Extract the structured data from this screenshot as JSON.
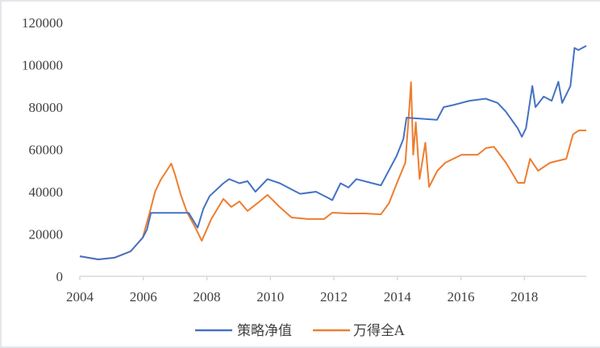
{
  "chart_data": {
    "type": "line",
    "title": "",
    "xlabel": "",
    "ylabel": "",
    "xlim": [
      2004,
      2019.95
    ],
    "ylim": [
      0,
      120000
    ],
    "x_ticks": [
      2004,
      2006,
      2008,
      2010,
      2012,
      2014,
      2016,
      2018
    ],
    "x_tick_labels": [
      "2004",
      "2006",
      "2008",
      "2010",
      "2012",
      "2014",
      "2016",
      "2018"
    ],
    "y_ticks": [
      0,
      20000,
      40000,
      60000,
      80000,
      100000,
      120000
    ],
    "y_tick_labels": [
      "0",
      "20000",
      "40000",
      "60000",
      "80000",
      "100000",
      "120000"
    ],
    "grid": false,
    "legend_position": "bottom",
    "series": [
      {
        "name": "策略净值",
        "color": "#4472c4",
        "points": [
          [
            2004.0,
            9500
          ],
          [
            2004.58,
            8000
          ],
          [
            2005.09,
            8800
          ],
          [
            2005.6,
            11800
          ],
          [
            2005.98,
            18300
          ],
          [
            2006.11,
            22000
          ],
          [
            2006.24,
            30000
          ],
          [
            2007.43,
            30000
          ],
          [
            2007.71,
            23000
          ],
          [
            2007.89,
            32000
          ],
          [
            2008.09,
            38000
          ],
          [
            2008.52,
            44000
          ],
          [
            2008.7,
            46000
          ],
          [
            2009.03,
            44000
          ],
          [
            2009.28,
            45000
          ],
          [
            2009.53,
            40000
          ],
          [
            2009.91,
            46000
          ],
          [
            2010.3,
            44000
          ],
          [
            2010.68,
            41000
          ],
          [
            2010.94,
            39000
          ],
          [
            2011.44,
            40000
          ],
          [
            2011.83,
            37000
          ],
          [
            2011.95,
            36000
          ],
          [
            2012.21,
            44000
          ],
          [
            2012.46,
            42000
          ],
          [
            2012.71,
            46000
          ],
          [
            2013.22,
            44000
          ],
          [
            2013.48,
            43000
          ],
          [
            2013.73,
            50000
          ],
          [
            2013.98,
            57000
          ],
          [
            2014.19,
            65000
          ],
          [
            2014.29,
            75000
          ],
          [
            2015.25,
            74000
          ],
          [
            2015.46,
            80000
          ],
          [
            2015.76,
            81000
          ],
          [
            2016.27,
            83000
          ],
          [
            2016.78,
            84000
          ],
          [
            2017.16,
            82000
          ],
          [
            2017.41,
            78000
          ],
          [
            2017.79,
            70000
          ],
          [
            2017.92,
            66000
          ],
          [
            2018.05,
            70000
          ],
          [
            2018.25,
            90000
          ],
          [
            2018.35,
            80000
          ],
          [
            2018.61,
            85000
          ],
          [
            2018.86,
            83000
          ],
          [
            2019.07,
            92000
          ],
          [
            2019.19,
            82000
          ],
          [
            2019.45,
            90000
          ],
          [
            2019.58,
            108000
          ],
          [
            2019.7,
            107000
          ],
          [
            2019.95,
            109000
          ]
        ]
      },
      {
        "name": "万得全A",
        "color": "#ed7d31",
        "points": [
          [
            2004.0,
            9500
          ],
          [
            2004.58,
            8000
          ],
          [
            2005.09,
            8800
          ],
          [
            2005.6,
            11800
          ],
          [
            2005.98,
            18300
          ],
          [
            2006.24,
            32400
          ],
          [
            2006.37,
            40000
          ],
          [
            2006.55,
            45700
          ],
          [
            2006.75,
            50300
          ],
          [
            2006.88,
            53300
          ],
          [
            2007.0,
            48000
          ],
          [
            2007.18,
            38500
          ],
          [
            2007.38,
            30100
          ],
          [
            2007.63,
            23300
          ],
          [
            2007.84,
            16800
          ],
          [
            2008.14,
            27100
          ],
          [
            2008.52,
            36600
          ],
          [
            2008.77,
            32800
          ],
          [
            2009.03,
            35400
          ],
          [
            2009.28,
            30900
          ],
          [
            2009.66,
            35400
          ],
          [
            2009.91,
            38500
          ],
          [
            2010.29,
            32800
          ],
          [
            2010.67,
            27800
          ],
          [
            2011.18,
            27100
          ],
          [
            2011.69,
            27100
          ],
          [
            2011.95,
            30100
          ],
          [
            2012.46,
            29700
          ],
          [
            2012.97,
            29700
          ],
          [
            2013.48,
            29300
          ],
          [
            2013.74,
            34700
          ],
          [
            2013.99,
            44200
          ],
          [
            2014.25,
            53700
          ],
          [
            2014.38,
            80400
          ],
          [
            2014.43,
            91800
          ],
          [
            2014.5,
            57500
          ],
          [
            2014.58,
            72800
          ],
          [
            2014.7,
            46100
          ],
          [
            2014.88,
            63200
          ],
          [
            2015.0,
            42300
          ],
          [
            2015.26,
            49900
          ],
          [
            2015.51,
            53700
          ],
          [
            2016.02,
            57500
          ],
          [
            2016.53,
            57500
          ],
          [
            2016.79,
            60600
          ],
          [
            2017.04,
            61300
          ],
          [
            2017.42,
            53700
          ],
          [
            2017.8,
            44200
          ],
          [
            2018.0,
            44200
          ],
          [
            2018.18,
            55600
          ],
          [
            2018.43,
            49900
          ],
          [
            2018.81,
            53700
          ],
          [
            2019.32,
            55600
          ],
          [
            2019.53,
            67100
          ],
          [
            2019.71,
            69000
          ],
          [
            2019.95,
            69000
          ]
        ]
      }
    ]
  }
}
